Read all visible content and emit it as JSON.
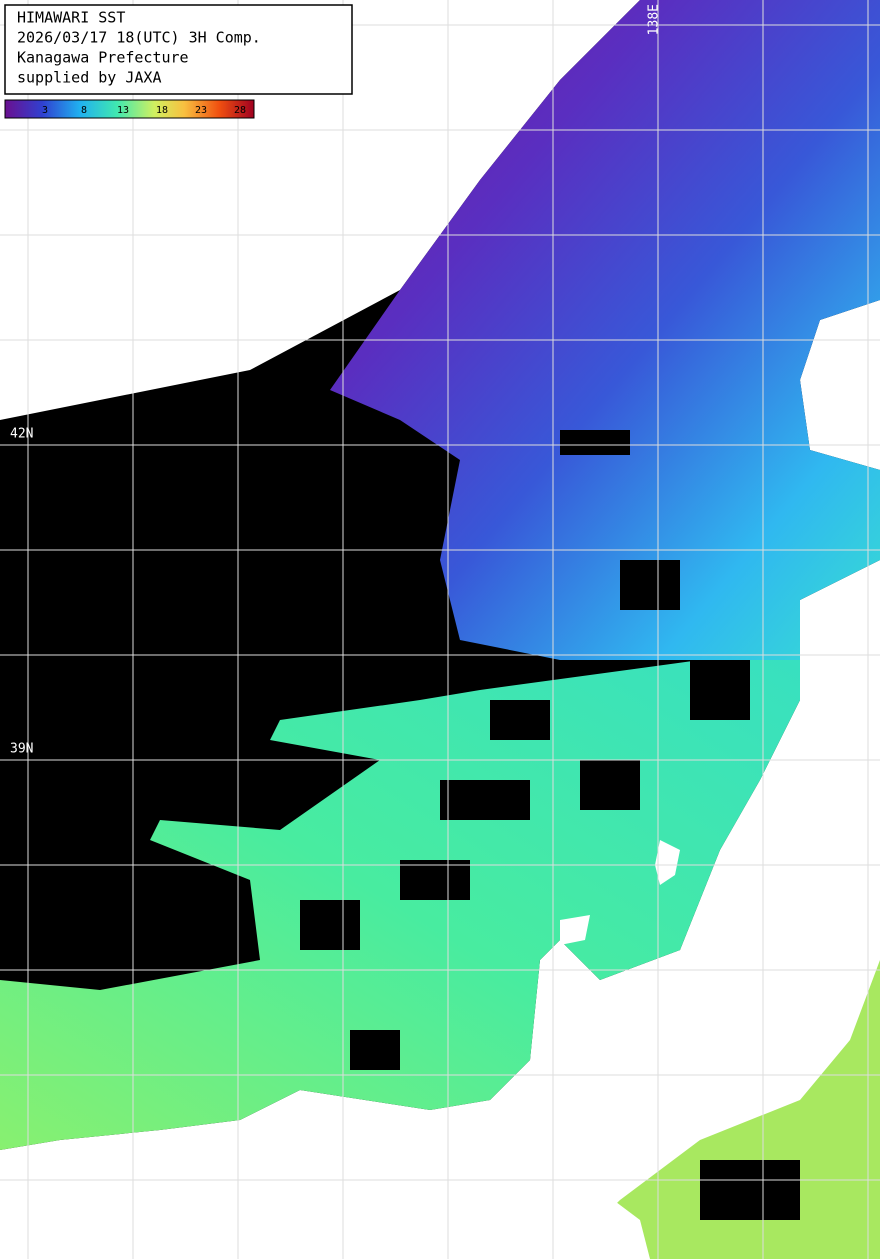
{
  "legend": {
    "lines": [
      "HIMAWARI SST",
      "2026/03/17 18(UTC) 3H Comp.",
      "Kanagawa Prefecture",
      "supplied by JAXA"
    ]
  },
  "colorbar": {
    "ticks": [
      3,
      8,
      13,
      18,
      23,
      28
    ]
  },
  "labels": {
    "latitudes": [
      "42N",
      "39N"
    ],
    "longitudes": [
      "138E"
    ]
  }
}
